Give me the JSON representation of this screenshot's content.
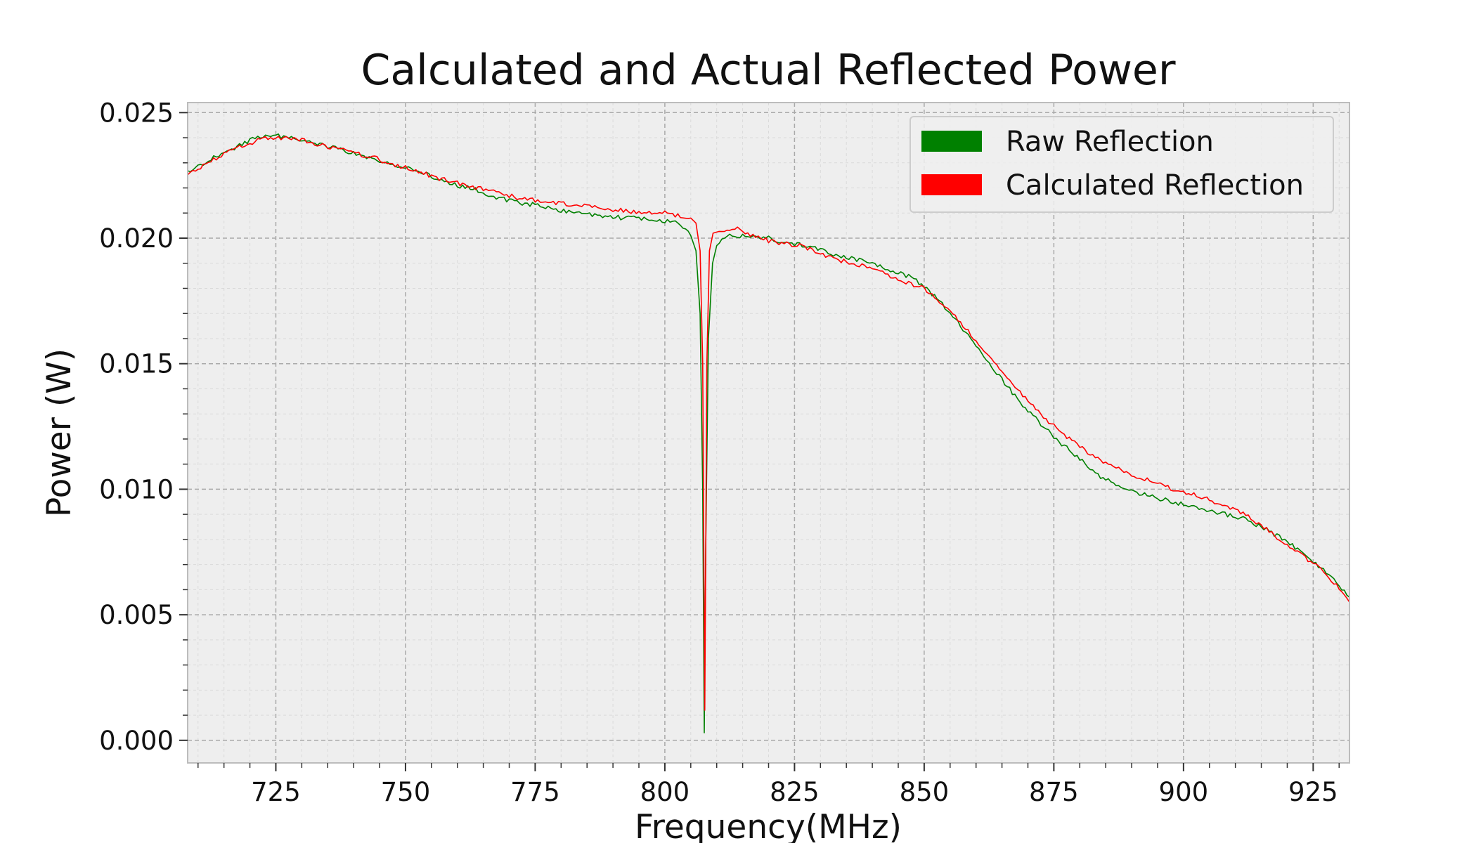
{
  "colors": {
    "plot_background": "#eeeeee",
    "grid_major": "#a9a9a9",
    "grid_minor": "#dadada",
    "frame": "#bcbcbc",
    "raw": "#008000",
    "calculated": "#ff0000"
  },
  "chart_data": {
    "type": "line",
    "title": "Calculated and Actual Reflected Power",
    "xlabel": "Frequency(MHz)",
    "ylabel": "Power (W)",
    "xlim": [
      708,
      932
    ],
    "ylim": [
      -0.0009,
      0.0254
    ],
    "xticks": [
      725,
      750,
      775,
      800,
      825,
      850,
      875,
      900,
      925
    ],
    "xtick_labels": [
      "725",
      "750",
      "775",
      "800",
      "825",
      "850",
      "875",
      "900",
      "925"
    ],
    "yticks": [
      0.0,
      0.005,
      0.01,
      0.015,
      0.02,
      0.025
    ],
    "ytick_labels": [
      "0.000",
      "0.005",
      "0.010",
      "0.015",
      "0.020",
      "0.025"
    ],
    "grid": true,
    "legend_position": "top-right",
    "series": [
      {
        "name": "Raw Reflection",
        "color": "#008000",
        "points": [
          [
            708,
            0.0226
          ],
          [
            712,
            0.0231
          ],
          [
            716,
            0.0235
          ],
          [
            720,
            0.0239
          ],
          [
            724,
            0.0241
          ],
          [
            728,
            0.024
          ],
          [
            732,
            0.0238
          ],
          [
            736,
            0.0236
          ],
          [
            740,
            0.0234
          ],
          [
            744,
            0.0231
          ],
          [
            748,
            0.0229
          ],
          [
            752,
            0.0227
          ],
          [
            756,
            0.0224
          ],
          [
            760,
            0.0221
          ],
          [
            764,
            0.0219
          ],
          [
            768,
            0.0216
          ],
          [
            772,
            0.0214
          ],
          [
            776,
            0.0213
          ],
          [
            780,
            0.0211
          ],
          [
            784,
            0.021
          ],
          [
            788,
            0.0209
          ],
          [
            792,
            0.0208
          ],
          [
            796,
            0.0208
          ],
          [
            800,
            0.0207
          ],
          [
            802,
            0.0206
          ],
          [
            804,
            0.0204
          ],
          [
            805,
            0.0201
          ],
          [
            806,
            0.0195
          ],
          [
            806.8,
            0.017
          ],
          [
            807.3,
            0.01
          ],
          [
            807.6,
            0.0003
          ],
          [
            807.9,
            0.008
          ],
          [
            808.4,
            0.016
          ],
          [
            809.2,
            0.019
          ],
          [
            810,
            0.0197
          ],
          [
            812,
            0.0201
          ],
          [
            816,
            0.0201
          ],
          [
            820,
            0.02
          ],
          [
            824,
            0.0198
          ],
          [
            828,
            0.0197
          ],
          [
            832,
            0.0194
          ],
          [
            836,
            0.0192
          ],
          [
            840,
            0.019
          ],
          [
            844,
            0.0187
          ],
          [
            848,
            0.0184
          ],
          [
            852,
            0.0177
          ],
          [
            856,
            0.0168
          ],
          [
            860,
            0.0157
          ],
          [
            864,
            0.0146
          ],
          [
            868,
            0.0136
          ],
          [
            872,
            0.0127
          ],
          [
            876,
            0.0119
          ],
          [
            880,
            0.0112
          ],
          [
            884,
            0.0105
          ],
          [
            888,
            0.0101
          ],
          [
            892,
            0.0098
          ],
          [
            896,
            0.0096
          ],
          [
            900,
            0.0094
          ],
          [
            904,
            0.0092
          ],
          [
            908,
            0.009
          ],
          [
            912,
            0.0088
          ],
          [
            916,
            0.0084
          ],
          [
            920,
            0.0079
          ],
          [
            924,
            0.0073
          ],
          [
            928,
            0.0066
          ],
          [
            932,
            0.0057
          ]
        ]
      },
      {
        "name": "Calculated Reflection",
        "color": "#ff0000",
        "points": [
          [
            708,
            0.0225
          ],
          [
            712,
            0.023
          ],
          [
            716,
            0.0235
          ],
          [
            720,
            0.0238
          ],
          [
            724,
            0.024
          ],
          [
            728,
            0.024
          ],
          [
            732,
            0.0238
          ],
          [
            736,
            0.0236
          ],
          [
            740,
            0.0234
          ],
          [
            744,
            0.0232
          ],
          [
            748,
            0.0229
          ],
          [
            752,
            0.0227
          ],
          [
            756,
            0.0224
          ],
          [
            760,
            0.0222
          ],
          [
            764,
            0.022
          ],
          [
            768,
            0.0218
          ],
          [
            772,
            0.0216
          ],
          [
            776,
            0.0215
          ],
          [
            780,
            0.0214
          ],
          [
            784,
            0.0213
          ],
          [
            788,
            0.0212
          ],
          [
            792,
            0.0211
          ],
          [
            796,
            0.021
          ],
          [
            800,
            0.021
          ],
          [
            803,
            0.0209
          ],
          [
            805,
            0.0208
          ],
          [
            806,
            0.0206
          ],
          [
            806.8,
            0.0195
          ],
          [
            807.3,
            0.015
          ],
          [
            807.7,
            0.0012
          ],
          [
            808.1,
            0.015
          ],
          [
            808.6,
            0.0195
          ],
          [
            809.3,
            0.0202
          ],
          [
            811,
            0.0203
          ],
          [
            814,
            0.0204
          ],
          [
            818,
            0.02
          ],
          [
            822,
            0.0198
          ],
          [
            826,
            0.0197
          ],
          [
            830,
            0.0194
          ],
          [
            834,
            0.0191
          ],
          [
            838,
            0.0189
          ],
          [
            842,
            0.0186
          ],
          [
            846,
            0.0183
          ],
          [
            850,
            0.018
          ],
          [
            854,
            0.0173
          ],
          [
            858,
            0.0164
          ],
          [
            862,
            0.0154
          ],
          [
            866,
            0.0144
          ],
          [
            870,
            0.0135
          ],
          [
            874,
            0.0127
          ],
          [
            878,
            0.012
          ],
          [
            882,
            0.0114
          ],
          [
            886,
            0.0109
          ],
          [
            890,
            0.0106
          ],
          [
            894,
            0.0103
          ],
          [
            898,
            0.01
          ],
          [
            902,
            0.0098
          ],
          [
            906,
            0.0095
          ],
          [
            910,
            0.0092
          ],
          [
            914,
            0.0087
          ],
          [
            918,
            0.0081
          ],
          [
            922,
            0.0075
          ],
          [
            926,
            0.0069
          ],
          [
            930,
            0.0061
          ],
          [
            932,
            0.0055
          ]
        ]
      }
    ]
  }
}
